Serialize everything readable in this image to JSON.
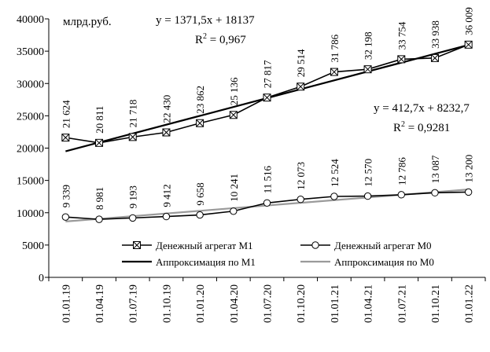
{
  "chart_data": {
    "type": "line",
    "unit_label": "млрд.руб.",
    "categories": [
      "01.01.19",
      "01.04.19",
      "01.07.19",
      "01.10.19",
      "01.01.20",
      "01.04.20",
      "01.07.20",
      "01.10.20",
      "01.01.21",
      "01.04.21",
      "01.07.21",
      "01.10.21",
      "01.01.22"
    ],
    "ylim": [
      0,
      40000
    ],
    "yticks": [
      0,
      5000,
      10000,
      15000,
      20000,
      25000,
      30000,
      35000,
      40000
    ],
    "grid": false,
    "legend_position": "bottom-center",
    "series": [
      {
        "name": "Денежный агрегат М1",
        "values": [
          21624,
          20811,
          21718,
          22430,
          23862,
          25136,
          27817,
          29514,
          31786,
          32198,
          33754,
          33938,
          36009
        ],
        "labels": [
          "21 624",
          "20 811",
          "21 718",
          "22 430",
          "23 862",
          "25 136",
          "27 817",
          "29 514",
          "31 786",
          "32 198",
          "33 754",
          "33 938",
          "36 009"
        ],
        "marker": "square-x",
        "color": "#000000"
      },
      {
        "name": "Денежный агрегат М0",
        "values": [
          9339,
          8981,
          9193,
          9412,
          9658,
          10241,
          11516,
          12073,
          12524,
          12570,
          12786,
          13087,
          13200
        ],
        "labels": [
          "9 339",
          "8 981",
          "9 193",
          "9 412",
          "9 658",
          "10 241",
          "11 516",
          "12 073",
          "12 524",
          "12 570",
          "12 786",
          "13 087",
          "13 200"
        ],
        "marker": "circle-open",
        "color": "#000000"
      }
    ],
    "trendlines": [
      {
        "name": "Аппроксимация по М1",
        "slope": 1371.5,
        "intercept": 18137,
        "equation": "y = 1371,5x + 18137",
        "r2_label": "R",
        "r2_sup": "2",
        "r2_value": " = 0,967",
        "color": "#000000"
      },
      {
        "name": "Аппроксимация по М0",
        "slope": 412.7,
        "intercept": 8232.7,
        "equation": "y = 412,7x + 8232,7",
        "r2_label": "R",
        "r2_sup": "2",
        "r2_value": " = 0,9281",
        "color": "#9a9a9a"
      }
    ]
  }
}
